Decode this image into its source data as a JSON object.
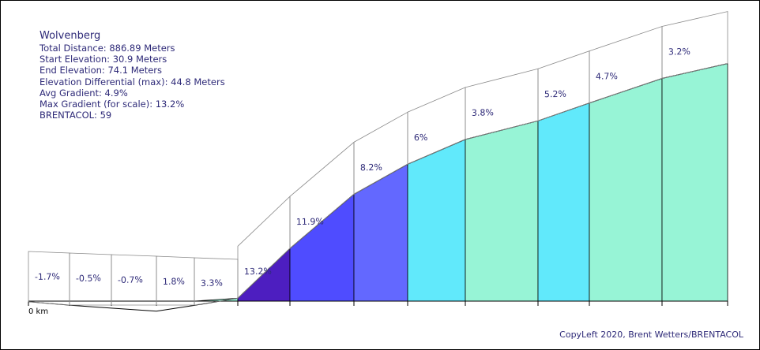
{
  "info": {
    "title": "Wolvenberg",
    "total_distance": "Total Distance: 886.89 Meters",
    "start_elevation": "Start Elevation: 30.9 Meters",
    "end_elevation": "End Elevation: 74.1 Meters",
    "elevation_differential": "Elevation Differential (max): 44.8 Meters",
    "avg_gradient": "Avg Gradient: 4.9%",
    "max_gradient": "Max Gradient (for scale): 13.2%",
    "brentacol": "BRENTACOL: 59"
  },
  "copyleft": "CopyLeft 2020, Brent Wetters/BRENTACOL",
  "chart_data": {
    "type": "area",
    "title": "Wolvenberg",
    "xlabel": "",
    "ylabel": "",
    "x_start_label": "0 km",
    "segments": [
      {
        "gradient_label": "-1.7%",
        "gradient": -1.7,
        "color": "#ffffff"
      },
      {
        "gradient_label": "-0.5%",
        "gradient": -0.5,
        "color": "#ffffff"
      },
      {
        "gradient_label": "-0.7%",
        "gradient": -0.7,
        "color": "#ffffff"
      },
      {
        "gradient_label": "1.8%",
        "gradient": 1.8,
        "color": "#ffffff"
      },
      {
        "gradient_label": "3.3%",
        "gradient": 3.3,
        "color": "#97f4d6"
      },
      {
        "gradient_label": "13.2%",
        "gradient": 13.2,
        "color": "#4d1ec0"
      },
      {
        "gradient_label": "11.9%",
        "gradient": 11.9,
        "color": "#4f4cff"
      },
      {
        "gradient_label": "8.2%",
        "gradient": 8.2,
        "color": "#6368ff"
      },
      {
        "gradient_label": "6%",
        "gradient": 6.0,
        "color": "#61e9fb"
      },
      {
        "gradient_label": "3.8%",
        "gradient": 3.8,
        "color": "#97f4d6"
      },
      {
        "gradient_label": "5.2%",
        "gradient": 5.2,
        "color": "#61e9fb"
      },
      {
        "gradient_label": "4.7%",
        "gradient": 4.7,
        "color": "#97f4d6"
      },
      {
        "gradient_label": "3.2%",
        "gradient": 3.2,
        "color": "#97f4d6"
      }
    ]
  }
}
